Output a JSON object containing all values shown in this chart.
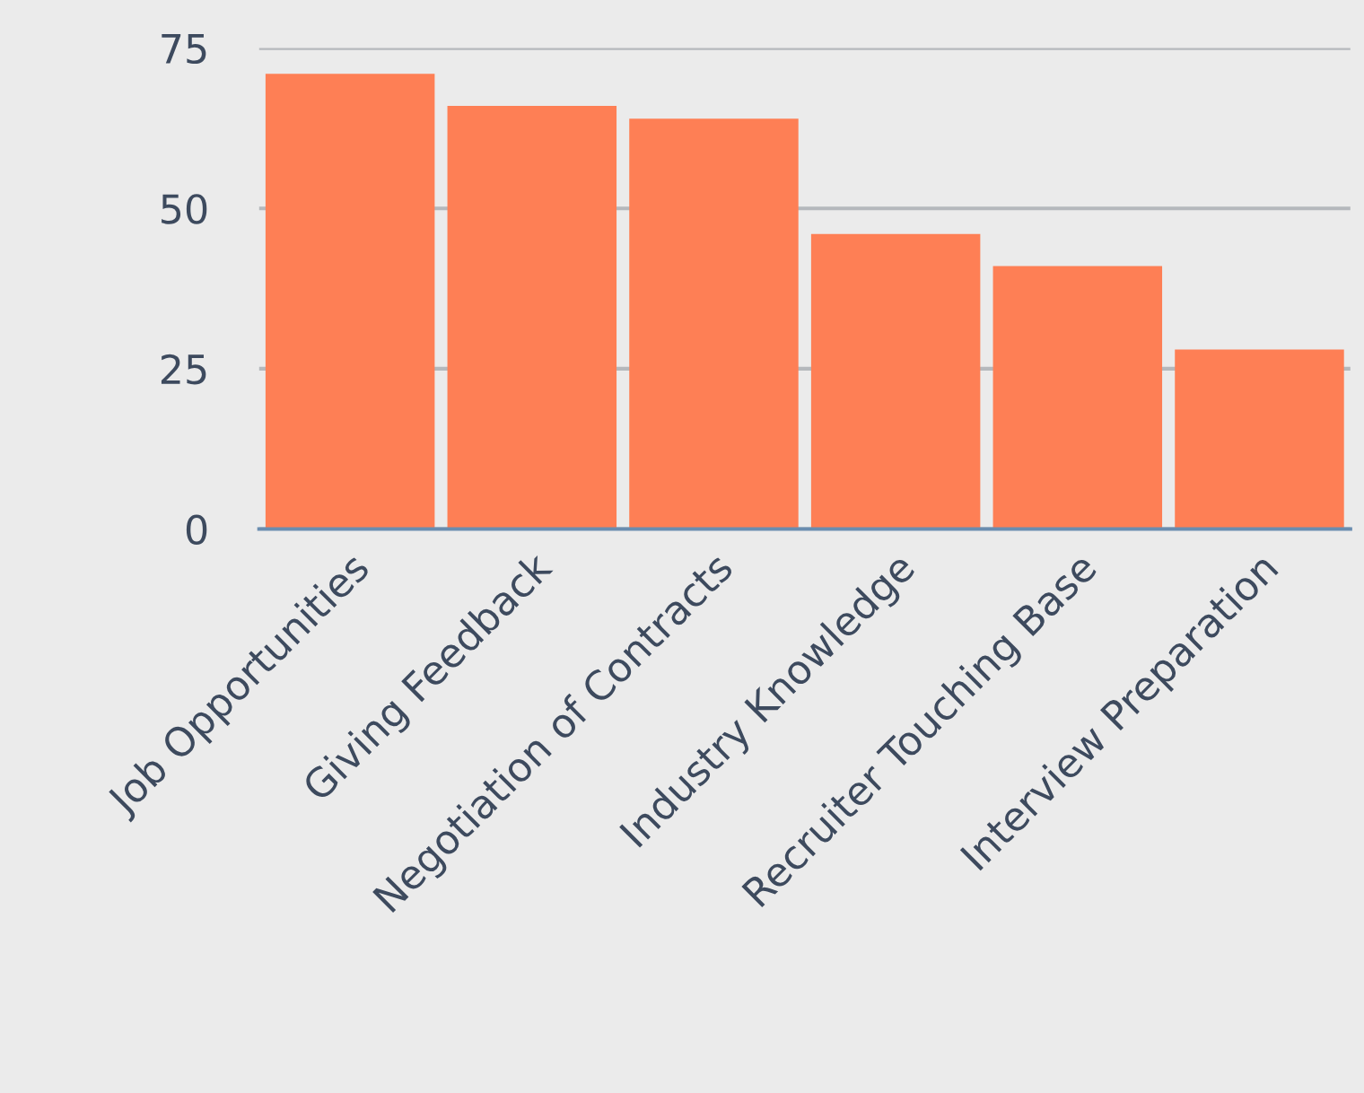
{
  "chart_data": {
    "type": "bar",
    "categories": [
      "Job Opportunities",
      "Giving Feedback",
      "Negotiation of Contracts",
      "Industry Knowledge",
      "Recruiter Touching Base",
      "Interview Preparation"
    ],
    "values": [
      71,
      66,
      64,
      46,
      41,
      28
    ],
    "color": "#fe7f55",
    "ylim": [
      0,
      75
    ],
    "yticks": [
      0,
      25,
      50,
      75
    ],
    "grid": "y",
    "legend": false
  }
}
